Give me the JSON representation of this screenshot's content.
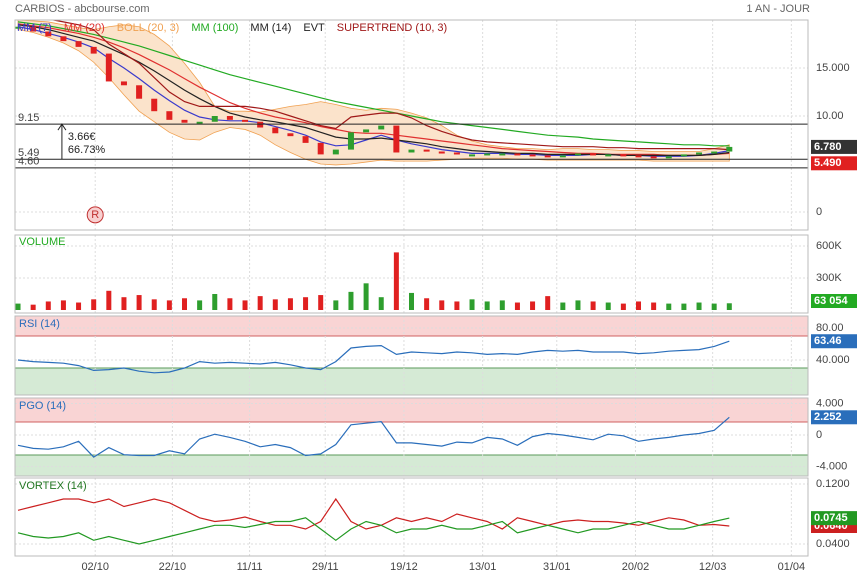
{
  "header": {
    "title": "CARBIOS - abcbourse.com",
    "period": "1 AN - JOUR"
  },
  "chart_data": [
    {
      "type": "candles",
      "xlim": [
        -0.2,
        52.2
      ],
      "xticks": [
        {
          "value": 5.1,
          "label": "02/10"
        },
        {
          "value": 10.2,
          "label": "22/10"
        },
        {
          "value": 15.3,
          "label": "11/11"
        },
        {
          "value": 20.3,
          "label": "29/11"
        },
        {
          "value": 25.5,
          "label": "19/12"
        },
        {
          "value": 30.7,
          "label": "13/01"
        },
        {
          "value": 35.6,
          "label": "31/01"
        },
        {
          "value": 40.8,
          "label": "20/02"
        },
        {
          "value": 45.9,
          "label": "12/03"
        },
        {
          "value": 51.1,
          "label": "01/04"
        }
      ],
      "ylim": [
        -1.875,
        20
      ],
      "yticks": [
        0,
        {
          "value": 10,
          "label": "10.00"
        },
        {
          "value": 15,
          "label": "15.000"
        }
      ],
      "up_color": "#2e9e2e",
      "down_color": "#e02020",
      "close": [
        19.3,
        18.8,
        18.3,
        17.8,
        17.2,
        16.5,
        13.6,
        13.2,
        11.8,
        10.5,
        9.6,
        9.3,
        9.4,
        10.0,
        9.6,
        9.4,
        8.8,
        8.2,
        7.9,
        7.2,
        6.0,
        6.5,
        8.3,
        8.6,
        9.0,
        6.2,
        6.5,
        6.3,
        6.2,
        6.0,
        6.0,
        6.1,
        6.1,
        6.0,
        5.9,
        5.7,
        5.9,
        6.1,
        6.0,
        6.0,
        5.9,
        5.8,
        5.6,
        5.8,
        6.0,
        6.2,
        6.3,
        6.78
      ],
      "last_label": "6.780",
      "series": [
        {
          "name": "MM (7)",
          "color": "#3a3acc",
          "values": [
            19.3,
            19.0,
            18.6,
            18.2,
            17.7,
            17.1,
            16.0,
            15.0,
            13.9,
            12.7,
            11.6,
            10.6,
            9.9,
            9.6,
            9.5,
            9.5,
            9.3,
            8.9,
            8.5,
            8.0,
            7.3,
            6.9,
            7.0,
            7.5,
            8.0,
            7.5,
            7.1,
            6.8,
            6.5,
            6.3,
            6.1,
            6.1,
            6.1,
            6.0,
            6.0,
            5.9,
            5.9,
            5.9,
            6.0,
            6.0,
            5.9,
            5.9,
            5.8,
            5.8,
            5.8,
            5.9,
            6.1,
            6.4
          ]
        },
        {
          "name": "MM (20)",
          "color": "#e03030",
          "values": [
            19.6,
            19.4,
            19.2,
            18.9,
            18.6,
            18.2,
            17.7,
            17.1,
            16.4,
            15.6,
            14.8,
            13.9,
            13.0,
            12.2,
            11.4,
            10.8,
            10.3,
            9.9,
            9.6,
            9.3,
            8.9,
            8.6,
            8.3,
            8.2,
            8.2,
            8.0,
            7.8,
            7.6,
            7.4,
            7.2,
            7.0,
            6.8,
            6.6,
            6.5,
            6.4,
            6.3,
            6.2,
            6.1,
            6.1,
            6.0,
            6.0,
            6.0,
            6.0,
            5.9,
            5.9,
            5.9,
            6.0,
            6.1
          ]
        },
        {
          "name": "BOLL (20, 3)",
          "color": "#f0a050",
          "fill": "#fbe3cb",
          "values": [
            20,
            19.9,
            19.8,
            19.5,
            19.2,
            19.0,
            19.3,
            19.5,
            19.3,
            18.5,
            17.3,
            15.5,
            13.5,
            11.0,
            10.5,
            10.5,
            10.4,
            10.7,
            11.0,
            11.2,
            11.5,
            11.2,
            10.8,
            10.6,
            10.8,
            10.7,
            10.3,
            9.8,
            9.0,
            8.0,
            7.4,
            7.0,
            6.8,
            6.6,
            6.6,
            6.5,
            6.6,
            6.6,
            6.5,
            6.5,
            6.4,
            6.4,
            6.3,
            6.3,
            6.3,
            6.3,
            6.6,
            7.0
          ],
          "lower": [
            19.0,
            18.7,
            18.2,
            17.6,
            16.8,
            15.6,
            14.0,
            12.2,
            10.5,
            9.4,
            8.3,
            7.6,
            7.5,
            8.3,
            8.8,
            8.6,
            8.0,
            7.0,
            6.2,
            5.5,
            5.0,
            4.9,
            5.0,
            5.2,
            5.4,
            5.3,
            5.3,
            5.3,
            5.4,
            5.5,
            5.6,
            5.6,
            5.6,
            5.5,
            5.5,
            5.4,
            5.4,
            5.4,
            5.4,
            5.4,
            5.4,
            5.4,
            5.3,
            5.3,
            5.3,
            5.3,
            5.3,
            5.3
          ]
        },
        {
          "name": "MM (100)",
          "color": "#22aa22",
          "values": [
            19.8,
            19.6,
            19.4,
            19.1,
            18.8,
            18.5,
            18.1,
            17.7,
            17.3,
            16.8,
            16.3,
            15.8,
            15.3,
            14.8,
            14.3,
            13.9,
            13.5,
            13.1,
            12.7,
            12.3,
            11.9,
            11.5,
            11.2,
            10.9,
            10.6,
            10.3,
            10.0,
            9.7,
            9.4,
            9.2,
            9.0,
            8.8,
            8.6,
            8.4,
            8.2,
            8.0,
            7.9,
            7.8,
            7.6,
            7.5,
            7.4,
            7.3,
            7.2,
            7.1,
            7.0,
            7.0,
            6.9,
            6.9
          ]
        },
        {
          "name": "MM (14)",
          "color": "#222222",
          "values": [
            19.5,
            19.3,
            19.0,
            18.6,
            18.2,
            17.8,
            17.1,
            16.4,
            15.6,
            14.7,
            13.7,
            12.7,
            11.8,
            11.0,
            10.3,
            9.9,
            9.6,
            9.4,
            9.1,
            8.8,
            8.3,
            7.8,
            7.6,
            7.6,
            7.7,
            7.5,
            7.3,
            7.1,
            6.8,
            6.6,
            6.4,
            6.3,
            6.2,
            6.1,
            6.1,
            6.0,
            6.0,
            6.0,
            6.0,
            6.0,
            5.9,
            5.9,
            5.9,
            5.9,
            5.9,
            5.9,
            6.0,
            6.2
          ]
        },
        {
          "name": "EVT",
          "color": "#222222"
        },
        {
          "name": "SUPERTREND (10, 3)",
          "color": "#a01818",
          "values": [
            20.5,
            20.3,
            20.1,
            19.8,
            19.5,
            19.0,
            17.5,
            16.5,
            15.5,
            14.0,
            12.5,
            11.5,
            11.0,
            11.0,
            11.0,
            11.0,
            10.8,
            10.5,
            10.0,
            9.5,
            9.0,
            8.7,
            9.9,
            10.1,
            10.3,
            10.3,
            9.8,
            9.0,
            8.4,
            7.9,
            7.5,
            7.3,
            7.2,
            7.1,
            7.0,
            6.9,
            6.8,
            6.8,
            6.8,
            6.7,
            6.7,
            6.6,
            6.6,
            6.6,
            6.6,
            6.6,
            6.6,
            6.5
          ]
        }
      ],
      "hlines": [
        {
          "value": 9.15,
          "label": "9.15"
        },
        {
          "value": 5.49,
          "label": "5.49",
          "tag": "5.490"
        },
        {
          "value": 4.6,
          "label": "4.60"
        }
      ],
      "annotation": {
        "from": 5.49,
        "to": 9.15,
        "x": 2.9,
        "labels": [
          "3.66€",
          "66.73%"
        ]
      },
      "marker": {
        "x": 5.1,
        "y": -0.3,
        "label": "R"
      }
    },
    {
      "type": "volume",
      "ylim": [
        0,
        703000
      ],
      "yticks": [
        {
          "value": 300000,
          "label": "300K"
        },
        {
          "value": 600000,
          "label": "600K"
        }
      ],
      "series": [
        {
          "name": "VOLUME",
          "color": "#22aa22",
          "values": [
            60000,
            50000,
            80000,
            90000,
            70000,
            100000,
            180000,
            120000,
            140000,
            100000,
            90000,
            110000,
            90000,
            150000,
            110000,
            90000,
            130000,
            100000,
            110000,
            120000,
            140000,
            90000,
            170000,
            250000,
            120000,
            540000,
            160000,
            110000,
            90000,
            80000,
            100000,
            80000,
            90000,
            70000,
            80000,
            130000,
            70000,
            90000,
            80000,
            70000,
            60000,
            80000,
            70000,
            60000,
            60000,
            70000,
            60000,
            63054
          ],
          "last_label": "63 054"
        }
      ]
    },
    {
      "type": "line",
      "ylim": [
        -3.75,
        95
      ],
      "yticks": [
        {
          "value": 40,
          "label": "40.000"
        },
        {
          "value": 80,
          "label": "80.00"
        }
      ],
      "levels": [
        70,
        30
      ],
      "series": [
        {
          "name": "RSI (14)",
          "color": "#2a6ebb",
          "values": [
            40,
            38,
            37,
            36,
            33,
            27,
            28,
            30,
            26,
            24,
            25,
            30,
            38,
            36,
            37,
            36,
            35,
            37,
            34,
            30,
            28,
            38,
            55,
            57,
            58,
            47,
            50,
            49,
            48,
            50,
            49,
            47,
            48,
            47,
            50,
            52,
            51,
            52,
            50,
            50,
            50,
            48,
            49,
            51,
            52,
            53,
            57,
            63.46
          ],
          "last_label": "63.46"
        }
      ]
    },
    {
      "type": "line",
      "ylim": [
        -5.2,
        4.7
      ],
      "yticks": [
        {
          "value": -4,
          "label": "-4.000"
        },
        0,
        {
          "value": 4,
          "label": "4.000"
        }
      ],
      "levels": [
        1.65,
        -2.54
      ],
      "series": [
        {
          "name": "PGO (14)",
          "color": "#2a6ebb",
          "values": [
            -1.3,
            -1.7,
            -1.8,
            -1.5,
            -0.8,
            -2.8,
            -1.6,
            -2.5,
            -2.6,
            -2.6,
            -2.0,
            -2.4,
            -0.5,
            0.1,
            -0.3,
            -0.8,
            -1.5,
            -1.2,
            -1.6,
            -2.6,
            -2.4,
            -1.2,
            1.3,
            1.5,
            1.7,
            -1.0,
            -1.0,
            -1.2,
            -1.4,
            -0.9,
            -1.0,
            -0.3,
            -0.5,
            -1.3,
            -0.2,
            0.2,
            0.0,
            -0.3,
            -0.6,
            0.1,
            -0.1,
            -0.8,
            -0.5,
            -0.3,
            0.0,
            0.2,
            0.6,
            2.252
          ],
          "last_label": "2.252"
        }
      ]
    },
    {
      "type": "line",
      "ylim": [
        0.024,
        0.128
      ],
      "yticks": [
        {
          "value": 0.04,
          "label": "0.0400"
        },
        {
          "value": 0.12,
          "label": "0.1200"
        }
      ],
      "series": [
        {
          "name": "VORTEX (14)",
          "color": "#cc2020",
          "values": [
            0.085,
            0.09,
            0.095,
            0.1,
            0.1,
            0.095,
            0.1,
            0.09,
            0.095,
            0.1,
            0.095,
            0.085,
            0.075,
            0.07,
            0.072,
            0.076,
            0.07,
            0.065,
            0.065,
            0.06,
            0.07,
            0.1,
            0.07,
            0.06,
            0.065,
            0.075,
            0.07,
            0.075,
            0.07,
            0.08,
            0.075,
            0.07,
            0.06,
            0.075,
            0.07,
            0.065,
            0.07,
            0.072,
            0.07,
            0.07,
            0.068,
            0.065,
            0.07,
            0.075,
            0.072,
            0.065,
            0.066,
            0.064
          ],
          "last_label": "0.0640"
        },
        {
          "color": "#229922",
          "values": [
            0.055,
            0.05,
            0.048,
            0.05,
            0.055,
            0.045,
            0.05,
            0.045,
            0.04,
            0.045,
            0.05,
            0.055,
            0.06,
            0.065,
            0.065,
            0.062,
            0.066,
            0.07,
            0.07,
            0.075,
            0.06,
            0.045,
            0.06,
            0.07,
            0.065,
            0.055,
            0.06,
            0.06,
            0.065,
            0.06,
            0.06,
            0.065,
            0.07,
            0.055,
            0.06,
            0.065,
            0.06,
            0.055,
            0.06,
            0.06,
            0.065,
            0.07,
            0.065,
            0.06,
            0.06,
            0.065,
            0.07,
            0.0745
          ],
          "last_label": "0.0745"
        }
      ]
    }
  ]
}
